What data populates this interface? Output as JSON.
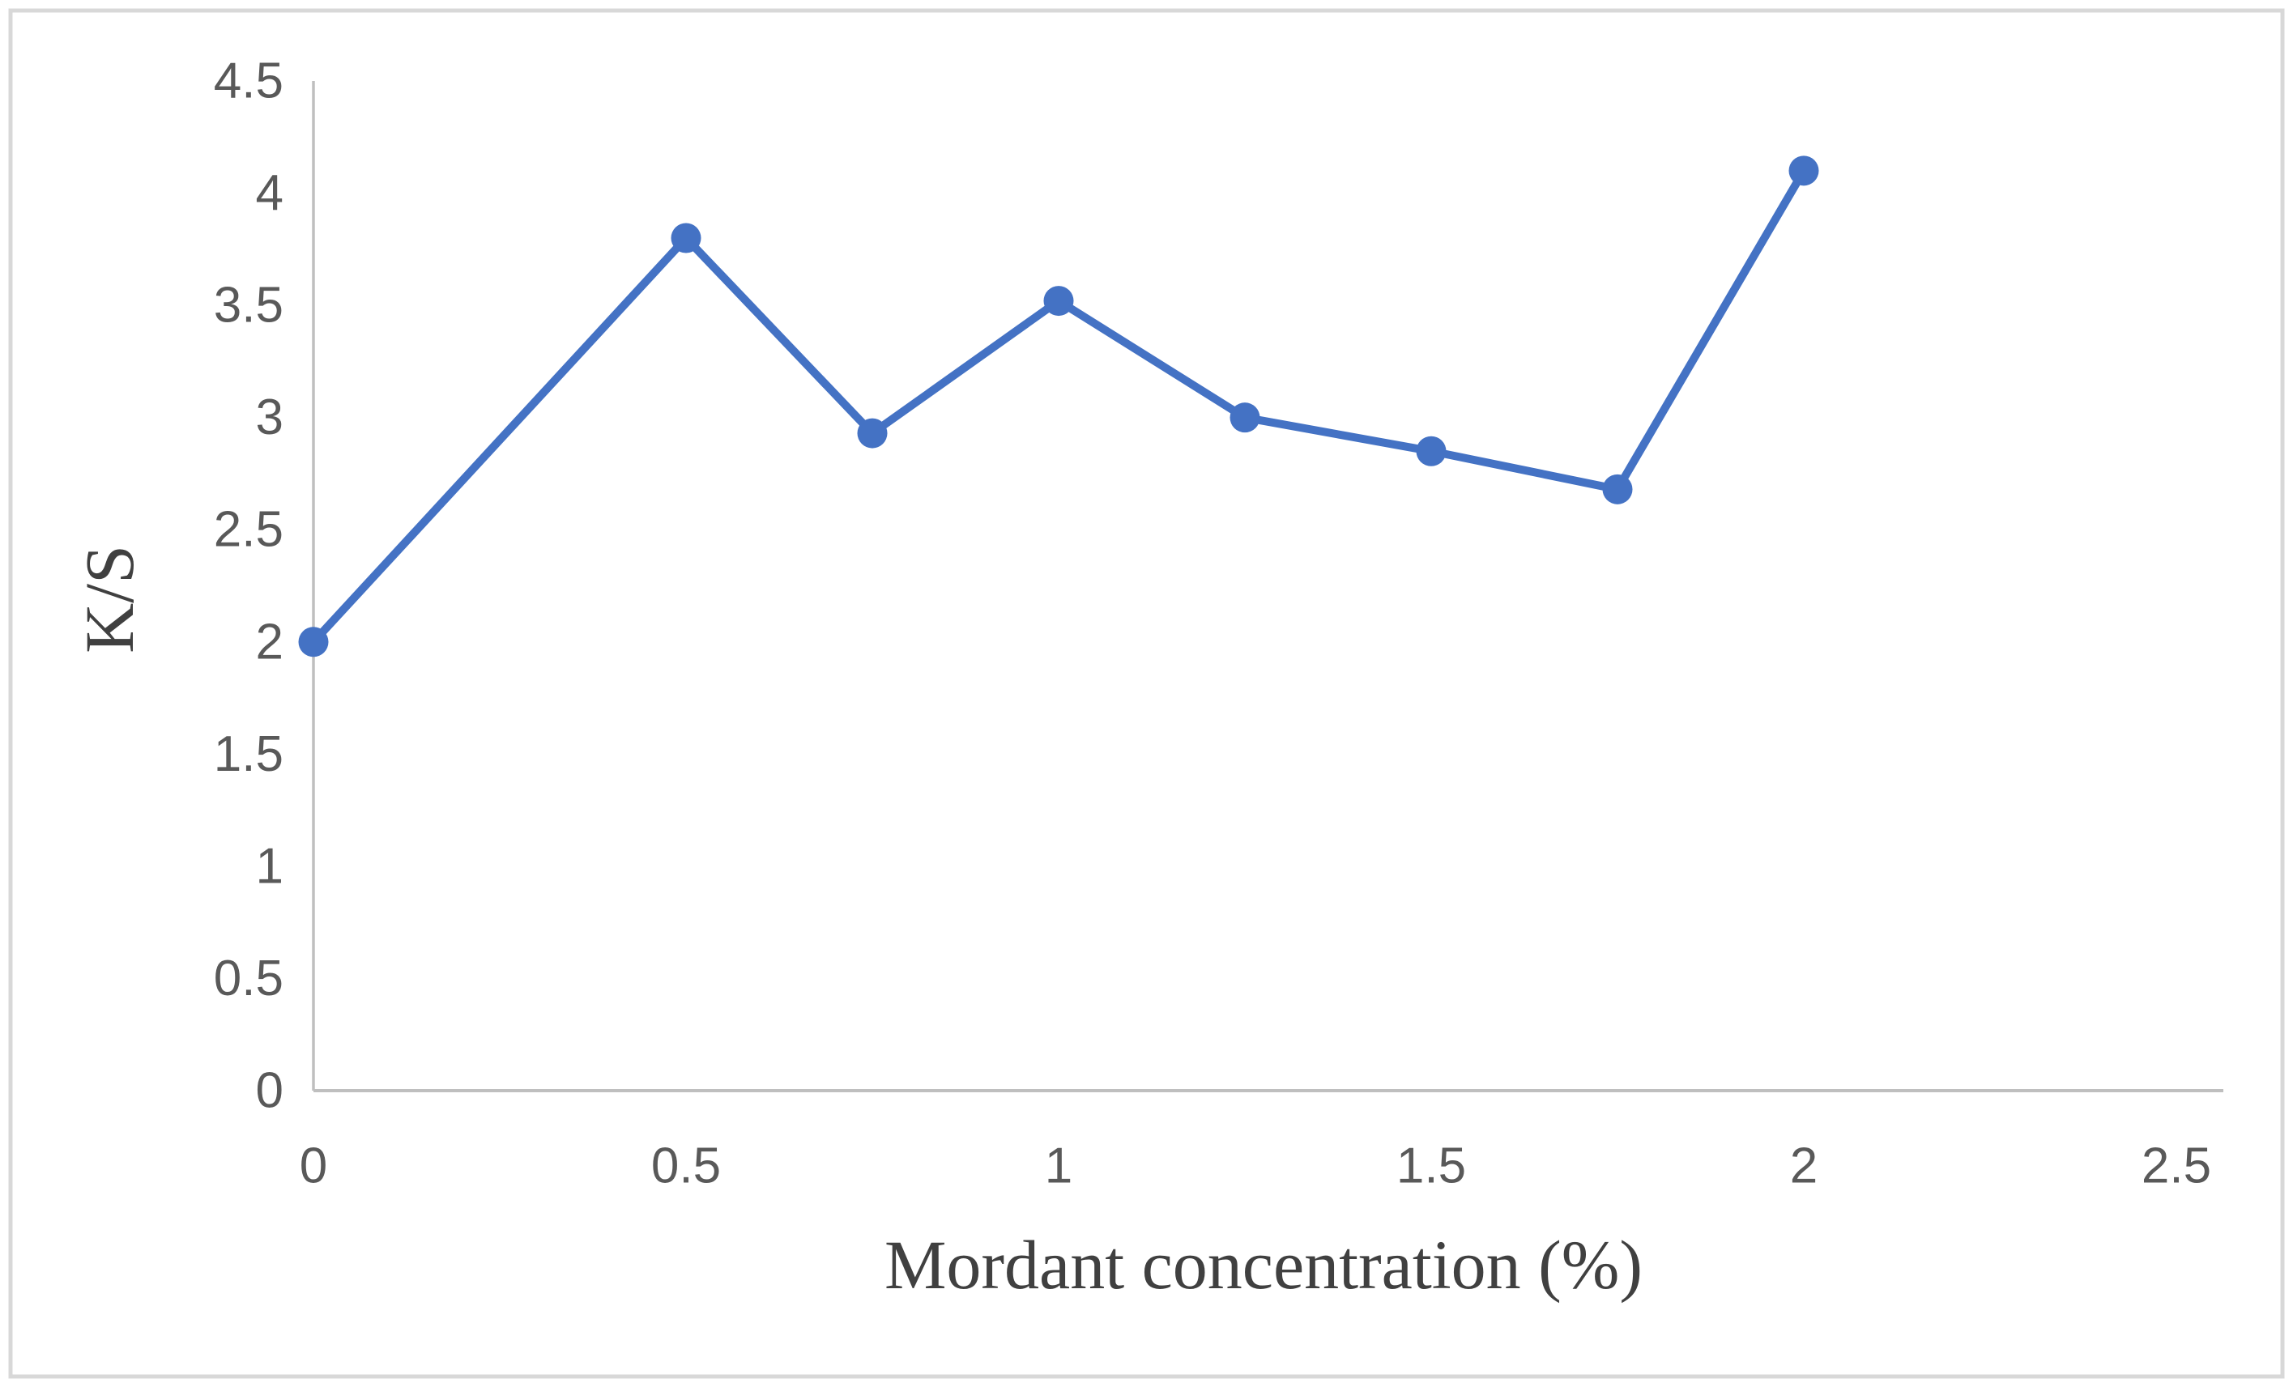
{
  "figure": {
    "background": "#FFFFFF",
    "border_color": "#D8D8D8"
  },
  "chart_data": {
    "type": "line",
    "title": "",
    "xlabel": "Mordant concentration (%)",
    "ylabel": "K/S",
    "x": [
      0,
      0.5,
      0.75,
      1,
      1.25,
      1.5,
      1.75,
      2
    ],
    "y": [
      2,
      3.8,
      2.93,
      3.52,
      3,
      2.85,
      2.68,
      4.1
    ],
    "series": [
      {
        "name": "K/S",
        "values": [
          2,
          3.8,
          2.93,
          3.52,
          3,
          2.85,
          2.68,
          4.1
        ]
      }
    ],
    "xlim": [
      0,
      2.5
    ],
    "ylim": [
      0,
      4.5
    ],
    "x_ticks": [
      0,
      0.5,
      1,
      1.5,
      2,
      2.5
    ],
    "y_ticks": [
      0,
      0.5,
      1,
      1.5,
      2,
      2.5,
      3,
      3.5,
      4,
      4.5
    ],
    "grid": false,
    "legend": "none",
    "marker": "circle",
    "series_color": "#4472C4",
    "axis_color": "#BFBFBF",
    "tick_label_color": "#595959",
    "axis_title_color": "#404040"
  }
}
